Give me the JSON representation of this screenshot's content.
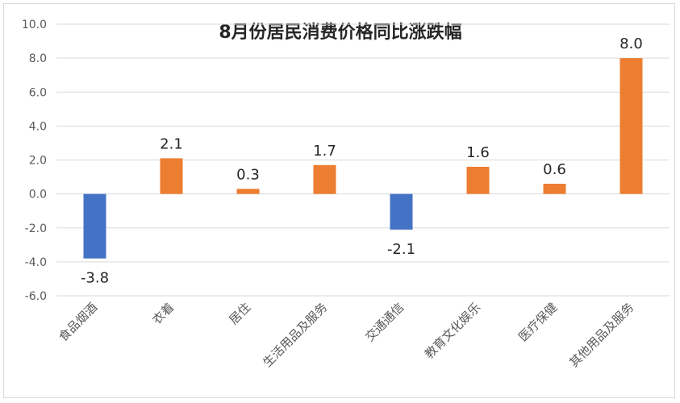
{
  "chart_data": {
    "type": "bar",
    "title": "8月份居民消费价格同比涨跌幅",
    "categories": [
      "食品烟酒",
      "衣着",
      "居住",
      "生活用品及服务",
      "交通通信",
      "教育文化娱乐",
      "医疗保健",
      "其他用品及服务"
    ],
    "values": [
      -3.8,
      2.1,
      0.3,
      1.7,
      -2.1,
      1.6,
      0.6,
      8.0
    ],
    "data_labels": [
      "-3.8",
      "2.1",
      "0.3",
      "1.7",
      "-2.1",
      "1.6",
      "0.6",
      "8.0"
    ],
    "ylim": [
      -6.0,
      10.0
    ],
    "yticks": [
      "-6.0",
      "-4.0",
      "-2.0",
      "0.0",
      "2.0",
      "4.0",
      "6.0",
      "8.0",
      "10.0"
    ],
    "grid": true,
    "colors": {
      "positive": "#ED7D31",
      "negative": "#4472C4",
      "grid": "#d9d9d9"
    }
  }
}
